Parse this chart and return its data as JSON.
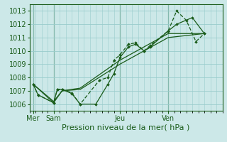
{
  "background_color": "#cce8e8",
  "grid_color": "#99cccc",
  "line_color": "#1a5c1a",
  "title": "Pression niveau de la mer( hPa )",
  "ylim": [
    1005.5,
    1013.5
  ],
  "yticks": [
    1006,
    1007,
    1008,
    1009,
    1010,
    1011,
    1012,
    1013
  ],
  "day_labels": [
    "Mer",
    "Sam",
    "Jeu",
    "Ven"
  ],
  "day_positions": [
    0.3,
    2.0,
    7.5,
    11.5
  ],
  "xlim": [
    0,
    16.0
  ],
  "line1_x": [
    0.3,
    0.7,
    2.0,
    2.3,
    2.7,
    3.5,
    4.2,
    5.5,
    6.5,
    7.0,
    7.5,
    8.2,
    8.8,
    9.5,
    10.0,
    11.5,
    12.2,
    13.5,
    14.5
  ],
  "line1_y": [
    1007.5,
    1006.7,
    1006.1,
    1007.1,
    1007.1,
    1006.8,
    1006.0,
    1006.0,
    1007.5,
    1008.3,
    1009.5,
    1010.3,
    1010.5,
    1010.0,
    1010.3,
    1011.5,
    1012.0,
    1012.5,
    1011.3
  ],
  "line2_x": [
    0.3,
    0.7,
    2.0,
    2.3,
    2.7,
    3.5,
    4.2,
    5.8,
    6.5,
    7.0,
    7.5,
    8.2,
    8.8,
    9.5,
    10.0,
    11.5,
    12.2,
    13.0,
    13.8,
    14.5
  ],
  "line2_y": [
    1007.5,
    1006.7,
    1006.1,
    1007.1,
    1007.1,
    1006.85,
    1006.0,
    1007.8,
    1008.0,
    1009.3,
    1009.7,
    1010.5,
    1010.6,
    1010.0,
    1010.4,
    1011.5,
    1013.0,
    1012.3,
    1010.7,
    1011.3
  ],
  "line3_x": [
    0.3,
    2.0,
    2.7,
    4.2,
    7.5,
    11.5,
    14.5
  ],
  "line3_y": [
    1007.5,
    1006.2,
    1007.0,
    1007.1,
    1009.0,
    1011.0,
    1011.3
  ],
  "line4_x": [
    0.3,
    2.0,
    2.7,
    4.2,
    7.5,
    11.5,
    14.5
  ],
  "line4_y": [
    1007.5,
    1006.1,
    1007.0,
    1007.2,
    1009.3,
    1011.3,
    1011.3
  ],
  "tick_fontsize": 7,
  "label_fontsize": 8
}
